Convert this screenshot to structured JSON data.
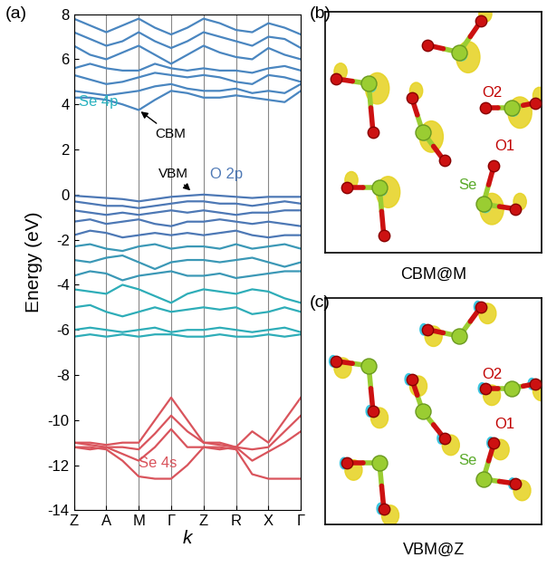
{
  "chart_data": {
    "type": "line",
    "panel_label": "(a)",
    "x_label": "k",
    "y_label": "Energy (eV)",
    "categories": [
      "Z",
      null,
      "A",
      null,
      "M",
      null,
      "Γ",
      null,
      "Z",
      null,
      "R",
      null,
      "X",
      null,
      "Γ"
    ],
    "ylim": [
      -14,
      8
    ],
    "yticks": [
      -14,
      -12,
      -10,
      -8,
      -6,
      -4,
      -2,
      0,
      2,
      4,
      6,
      8
    ],
    "series": [
      {
        "color": "#4a86c0",
        "values": [
          4.3,
          4.3,
          4.2,
          4.0,
          3.75,
          4.2,
          4.6,
          4.5,
          4.3,
          4.3,
          4.4,
          4.3,
          4.2,
          4.1,
          4.6
        ]
      },
      {
        "color": "#4a86c0",
        "values": [
          4.6,
          4.5,
          4.4,
          4.5,
          4.6,
          4.8,
          4.9,
          4.7,
          4.6,
          4.6,
          4.7,
          4.5,
          4.6,
          4.5,
          4.9
        ]
      },
      {
        "color": "#4a86c0",
        "values": [
          5.3,
          5.1,
          4.9,
          5.0,
          5.2,
          5.4,
          5.3,
          5.2,
          5.3,
          5.2,
          5.0,
          4.9,
          5.3,
          5.2,
          5.0
        ]
      },
      {
        "color": "#4a86c0",
        "values": [
          5.6,
          5.8,
          5.6,
          5.5,
          5.5,
          5.8,
          5.6,
          5.5,
          5.6,
          5.5,
          5.5,
          5.4,
          5.6,
          5.7,
          5.5
        ]
      },
      {
        "color": "#4a86c0",
        "values": [
          6.6,
          6.2,
          6.0,
          6.3,
          6.6,
          6.2,
          5.8,
          6.2,
          6.6,
          6.3,
          6.1,
          6.0,
          6.5,
          6.2,
          6.0
        ]
      },
      {
        "color": "#4a86c0",
        "values": [
          7.2,
          6.9,
          6.6,
          6.8,
          7.2,
          6.8,
          6.5,
          6.8,
          7.2,
          7.0,
          6.8,
          6.6,
          7.0,
          6.9,
          6.5
        ]
      },
      {
        "color": "#4a86c0",
        "values": [
          7.8,
          7.5,
          7.2,
          7.5,
          7.8,
          7.4,
          7.1,
          7.4,
          7.8,
          7.6,
          7.3,
          7.2,
          7.6,
          7.4,
          7.1
        ]
      },
      {
        "color": "#4d78b5",
        "values": [
          -0.05,
          -0.1,
          -0.15,
          -0.2,
          -0.3,
          -0.2,
          -0.1,
          -0.05,
          0.0,
          -0.05,
          -0.1,
          -0.15,
          -0.1,
          -0.1,
          -0.1
        ]
      },
      {
        "color": "#4d78b5",
        "values": [
          -0.3,
          -0.4,
          -0.5,
          -0.5,
          -0.6,
          -0.5,
          -0.4,
          -0.3,
          -0.3,
          -0.4,
          -0.4,
          -0.5,
          -0.4,
          -0.3,
          -0.4
        ]
      },
      {
        "color": "#4d78b5",
        "values": [
          -0.7,
          -0.8,
          -0.9,
          -0.8,
          -0.9,
          -0.8,
          -0.7,
          -0.8,
          -0.7,
          -0.8,
          -0.9,
          -0.8,
          -0.8,
          -0.7,
          -0.7
        ]
      },
      {
        "color": "#4d78b5",
        "values": [
          -1.2,
          -1.1,
          -1.3,
          -1.2,
          -1.1,
          -1.3,
          -1.4,
          -1.2,
          -1.2,
          -1.1,
          -1.2,
          -1.3,
          -1.2,
          -1.3,
          -1.4
        ]
      },
      {
        "color": "#4d78b5",
        "values": [
          -1.8,
          -1.6,
          -1.7,
          -1.9,
          -1.8,
          -1.7,
          -1.8,
          -1.7,
          -1.8,
          -1.7,
          -1.6,
          -1.8,
          -1.9,
          -1.8,
          -1.8
        ]
      },
      {
        "color": "#3b98b6",
        "values": [
          -2.3,
          -2.2,
          -2.4,
          -2.5,
          -2.3,
          -2.2,
          -2.4,
          -2.3,
          -2.3,
          -2.4,
          -2.2,
          -2.4,
          -2.3,
          -2.2,
          -2.4
        ]
      },
      {
        "color": "#3b98b6",
        "values": [
          -2.9,
          -3.0,
          -2.8,
          -2.7,
          -3.0,
          -3.3,
          -3.0,
          -2.9,
          -2.9,
          -3.0,
          -2.9,
          -2.8,
          -3.0,
          -3.2,
          -3.0
        ]
      },
      {
        "color": "#3b98b6",
        "values": [
          -3.6,
          -3.4,
          -3.5,
          -3.8,
          -3.6,
          -3.5,
          -3.4,
          -3.6,
          -3.6,
          -3.5,
          -3.7,
          -3.6,
          -3.5,
          -3.4,
          -3.4
        ]
      },
      {
        "color": "#2eadb8",
        "values": [
          -4.2,
          -4.3,
          -4.4,
          -4.0,
          -4.2,
          -4.5,
          -4.8,
          -4.4,
          -4.2,
          -4.3,
          -4.4,
          -4.2,
          -4.3,
          -4.6,
          -4.8
        ]
      },
      {
        "color": "#2eadb8",
        "values": [
          -5.0,
          -4.9,
          -5.2,
          -5.4,
          -5.2,
          -5.0,
          -5.2,
          -5.1,
          -5.0,
          -5.1,
          -5.0,
          -5.3,
          -5.2,
          -5.0,
          -5.2
        ]
      },
      {
        "color": "#2eadb8",
        "values": [
          -6.0,
          -5.9,
          -6.0,
          -6.1,
          -6.0,
          -5.9,
          -6.1,
          -6.0,
          -6.0,
          -5.9,
          -6.0,
          -6.1,
          -6.0,
          -5.9,
          -6.1
        ]
      },
      {
        "color": "#2eadb8",
        "values": [
          -6.3,
          -6.2,
          -6.3,
          -6.2,
          -6.3,
          -6.2,
          -6.2,
          -6.3,
          -6.3,
          -6.2,
          -6.3,
          -6.3,
          -6.2,
          -6.3,
          -6.2
        ]
      },
      {
        "color": "#d9545c",
        "values": [
          -11.0,
          -11.0,
          -11.1,
          -11.0,
          -11.0,
          -10.0,
          -9.0,
          -10.0,
          -11.0,
          -11.0,
          -11.2,
          -10.5,
          -11.0,
          -10.0,
          -9.0
        ]
      },
      {
        "color": "#d9545c",
        "values": [
          -11.0,
          -11.1,
          -11.2,
          -11.2,
          -11.3,
          -10.6,
          -9.8,
          -10.5,
          -11.0,
          -11.1,
          -11.2,
          -11.3,
          -11.2,
          -10.5,
          -9.8
        ]
      },
      {
        "color": "#d9545c",
        "values": [
          -11.2,
          -11.3,
          -11.2,
          -11.5,
          -11.8,
          -11.2,
          -10.4,
          -11.2,
          -11.2,
          -11.3,
          -11.2,
          -11.8,
          -11.4,
          -11.0,
          -10.5
        ]
      },
      {
        "color": "#d9545c",
        "values": [
          -11.2,
          -11.2,
          -11.3,
          -11.8,
          -12.5,
          -12.6,
          -12.6,
          -12.0,
          -11.2,
          -11.2,
          -11.3,
          -12.4,
          -12.6,
          -12.6,
          -12.6
        ]
      }
    ],
    "annotations": [
      {
        "text": "Se 4p",
        "x": 0.3,
        "y": 4.1,
        "color": "#2bb3c0"
      },
      {
        "text": "CBM",
        "x": 5.0,
        "y": 2.7,
        "color": "#000000",
        "points_to": [
          4.0,
          3.75
        ]
      },
      {
        "text": "VBM",
        "x": 5.2,
        "y": 0.9,
        "color": "#000000",
        "points_to": [
          7.3,
          0.1
        ]
      },
      {
        "text": "O 2p",
        "x": 8.4,
        "y": 0.9,
        "color": "#4d78b5"
      },
      {
        "text": "Se 4s",
        "x": 4.0,
        "y": -11.9,
        "color": "#d9545c"
      }
    ]
  },
  "structure_panels": [
    {
      "label": "(b)",
      "caption": "CBM@M",
      "atom_labels": [
        "O2",
        "O1",
        "Se"
      ]
    },
    {
      "label": "(c)",
      "caption": "VBM@Z",
      "atom_labels": [
        "O2",
        "O1",
        "Se"
      ]
    }
  ]
}
